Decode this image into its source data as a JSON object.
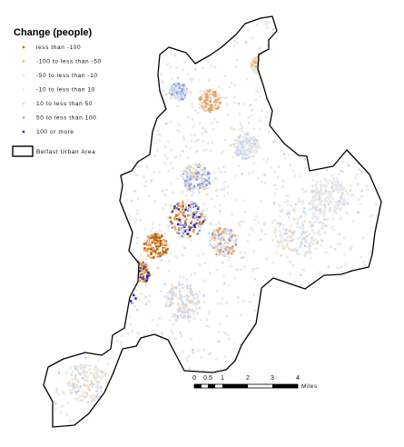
{
  "legend": {
    "title": "Change (people)",
    "items": [
      {
        "label": "less than -100",
        "color": "#b8650c",
        "size": 2.4
      },
      {
        "label": "-100 to less than -50",
        "color": "#e8a05a",
        "size": 2.2
      },
      {
        "label": "-50 to less than -10",
        "color": "#f6d6b4",
        "size": 2.0
      },
      {
        "label": "-10 to less than 10",
        "color": "#e9e9e9",
        "size": 2.0
      },
      {
        "label": "10 to less than 50",
        "color": "#c8d4f0",
        "size": 2.0
      },
      {
        "label": "50 to less than 100",
        "color": "#8a9cdc",
        "size": 2.2
      },
      {
        "label": "100 or more",
        "color": "#2424b4",
        "size": 2.4
      }
    ],
    "boundary_label": "Belfast Urban Area"
  },
  "scale_bar": {
    "ticks": [
      "0",
      "0.5",
      "1",
      "2",
      "3",
      "4"
    ],
    "unit": "Miles"
  },
  "colors": {
    "boundary": "#000000",
    "background": "#ffffff"
  }
}
